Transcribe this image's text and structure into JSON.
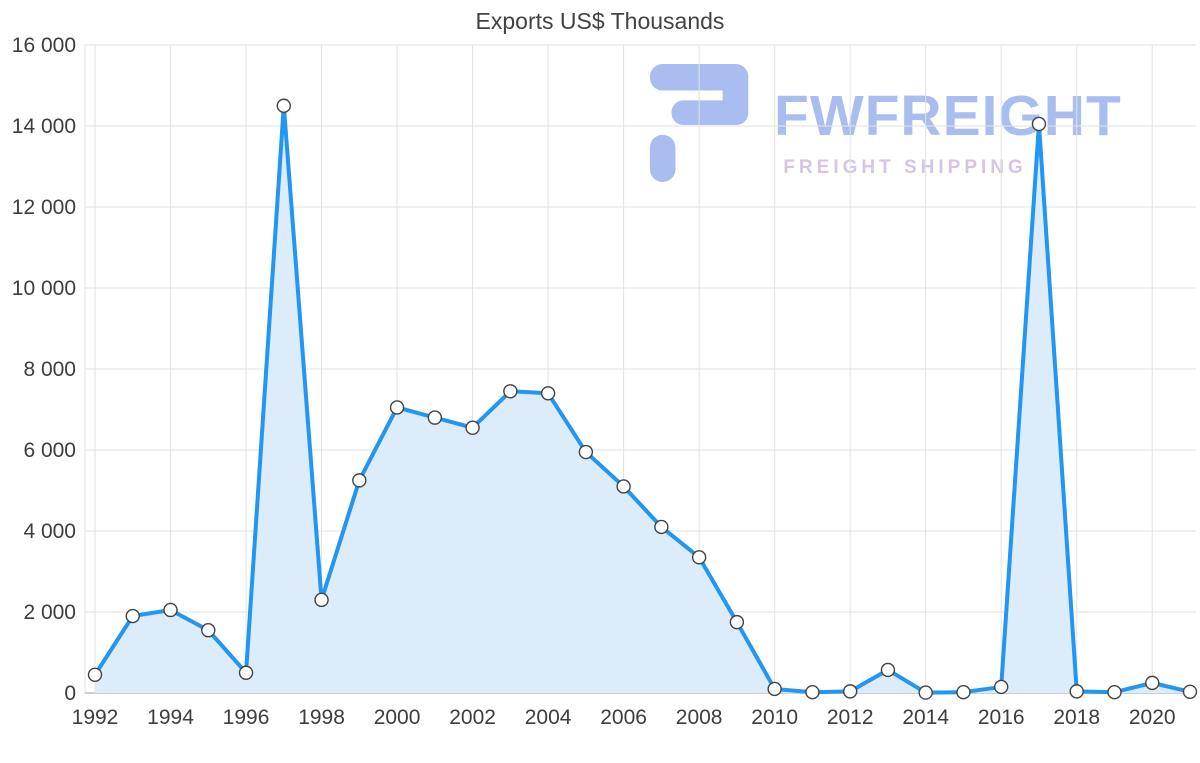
{
  "chart_data": {
    "type": "area",
    "title": "Exports US$ Thousands",
    "xlabel": "",
    "ylabel": "",
    "x": [
      1992,
      1993,
      1994,
      1995,
      1996,
      1997,
      1998,
      1999,
      2000,
      2001,
      2002,
      2003,
      2004,
      2005,
      2006,
      2007,
      2008,
      2009,
      2010,
      2011,
      2012,
      2013,
      2014,
      2015,
      2016,
      2017,
      2018,
      2019,
      2020,
      2021
    ],
    "values": [
      450,
      1900,
      2050,
      1550,
      500,
      14500,
      2300,
      5250,
      7050,
      6800,
      6550,
      7450,
      7400,
      5950,
      5100,
      4100,
      3350,
      1750,
      100,
      20,
      40,
      570,
      10,
      20,
      150,
      14050,
      40,
      20,
      250,
      30
    ],
    "xlim": [
      1992,
      2021
    ],
    "ylim": [
      0,
      16000
    ],
    "grid": true,
    "legend": "none",
    "yticks": {
      "values": [
        0,
        2000,
        4000,
        6000,
        8000,
        10000,
        12000,
        14000,
        16000
      ],
      "labels": [
        "0",
        "2 000",
        "4 000",
        "6 000",
        "8 000",
        "10 000",
        "12 000",
        "14 000",
        "16 000"
      ]
    },
    "xticks": {
      "values": [
        1992,
        1994,
        1996,
        1998,
        2000,
        2002,
        2004,
        2006,
        2008,
        2010,
        2012,
        2014,
        2016,
        2018,
        2020
      ],
      "labels": [
        "1992",
        "1994",
        "1996",
        "1998",
        "2000",
        "2002",
        "2004",
        "2006",
        "2008",
        "2010",
        "2012",
        "2014",
        "2016",
        "2018",
        "2020"
      ]
    },
    "line_color": "#2196f3",
    "fill_color": "#dcecfb",
    "marker_fill": "#ffffff",
    "marker_stroke": "#424242",
    "grid_color": "#e2e2e2",
    "axis_color": "#bdbdbd",
    "label_color": "#3d3d3d"
  },
  "watermark": {
    "brand": "FWFREIGHT",
    "tagline": "FREIGHT SHIPPING",
    "brand_color": "#a9bdf0",
    "tagline_color": "#d6c4e6",
    "logo_color": "#a9bdf0"
  }
}
